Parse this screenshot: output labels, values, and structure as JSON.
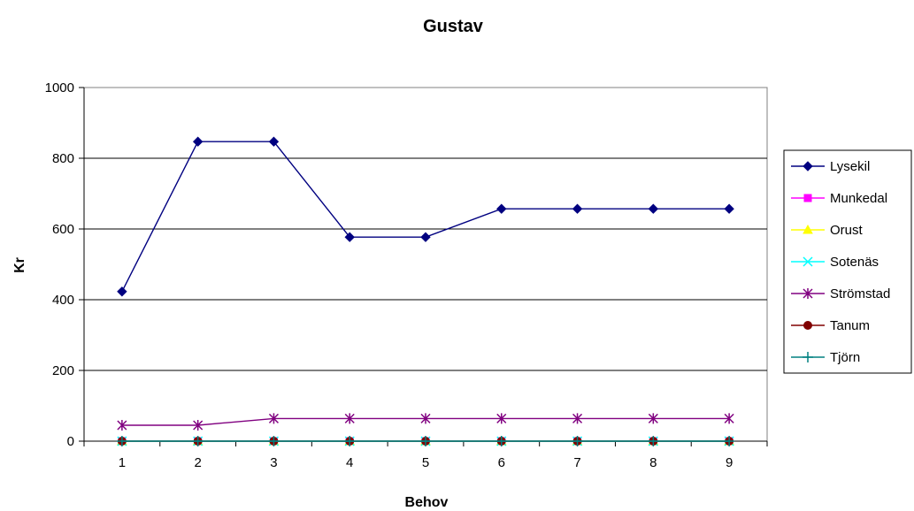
{
  "chart_data": {
    "type": "line",
    "title": "Gustav",
    "xlabel": "Behov",
    "ylabel": "Kr",
    "x": [
      1,
      2,
      3,
      4,
      5,
      6,
      7,
      8,
      9
    ],
    "ylim": [
      0,
      1000
    ],
    "yticks": [
      0,
      200,
      400,
      600,
      800,
      1000
    ],
    "grid": "horizontal",
    "legend": "right",
    "series": [
      {
        "name": "Lysekil",
        "color": "#000080",
        "marker": "diamond",
        "values": [
          423,
          847,
          847,
          577,
          577,
          657,
          657,
          657,
          657
        ]
      },
      {
        "name": "Munkedal",
        "color": "#ff00ff",
        "marker": "square",
        "values": [
          0,
          0,
          0,
          0,
          0,
          0,
          0,
          0,
          0
        ]
      },
      {
        "name": "Orust",
        "color": "#ffff00",
        "marker": "triangle",
        "values": [
          0,
          0,
          0,
          0,
          0,
          0,
          0,
          0,
          0
        ]
      },
      {
        "name": "Sotenäs",
        "color": "#00ffff",
        "marker": "x",
        "values": [
          0,
          0,
          0,
          0,
          0,
          0,
          0,
          0,
          0
        ]
      },
      {
        "name": "Strömstad",
        "color": "#800080",
        "marker": "asterisk",
        "values": [
          45,
          45,
          64,
          64,
          64,
          64,
          64,
          64,
          64
        ]
      },
      {
        "name": "Tanum",
        "color": "#800000",
        "marker": "circle",
        "values": [
          0,
          0,
          0,
          0,
          0,
          0,
          0,
          0,
          0
        ]
      },
      {
        "name": "Tjörn",
        "color": "#008080",
        "marker": "plus",
        "values": [
          0,
          0,
          0,
          0,
          0,
          0,
          0,
          0,
          0
        ]
      }
    ]
  }
}
